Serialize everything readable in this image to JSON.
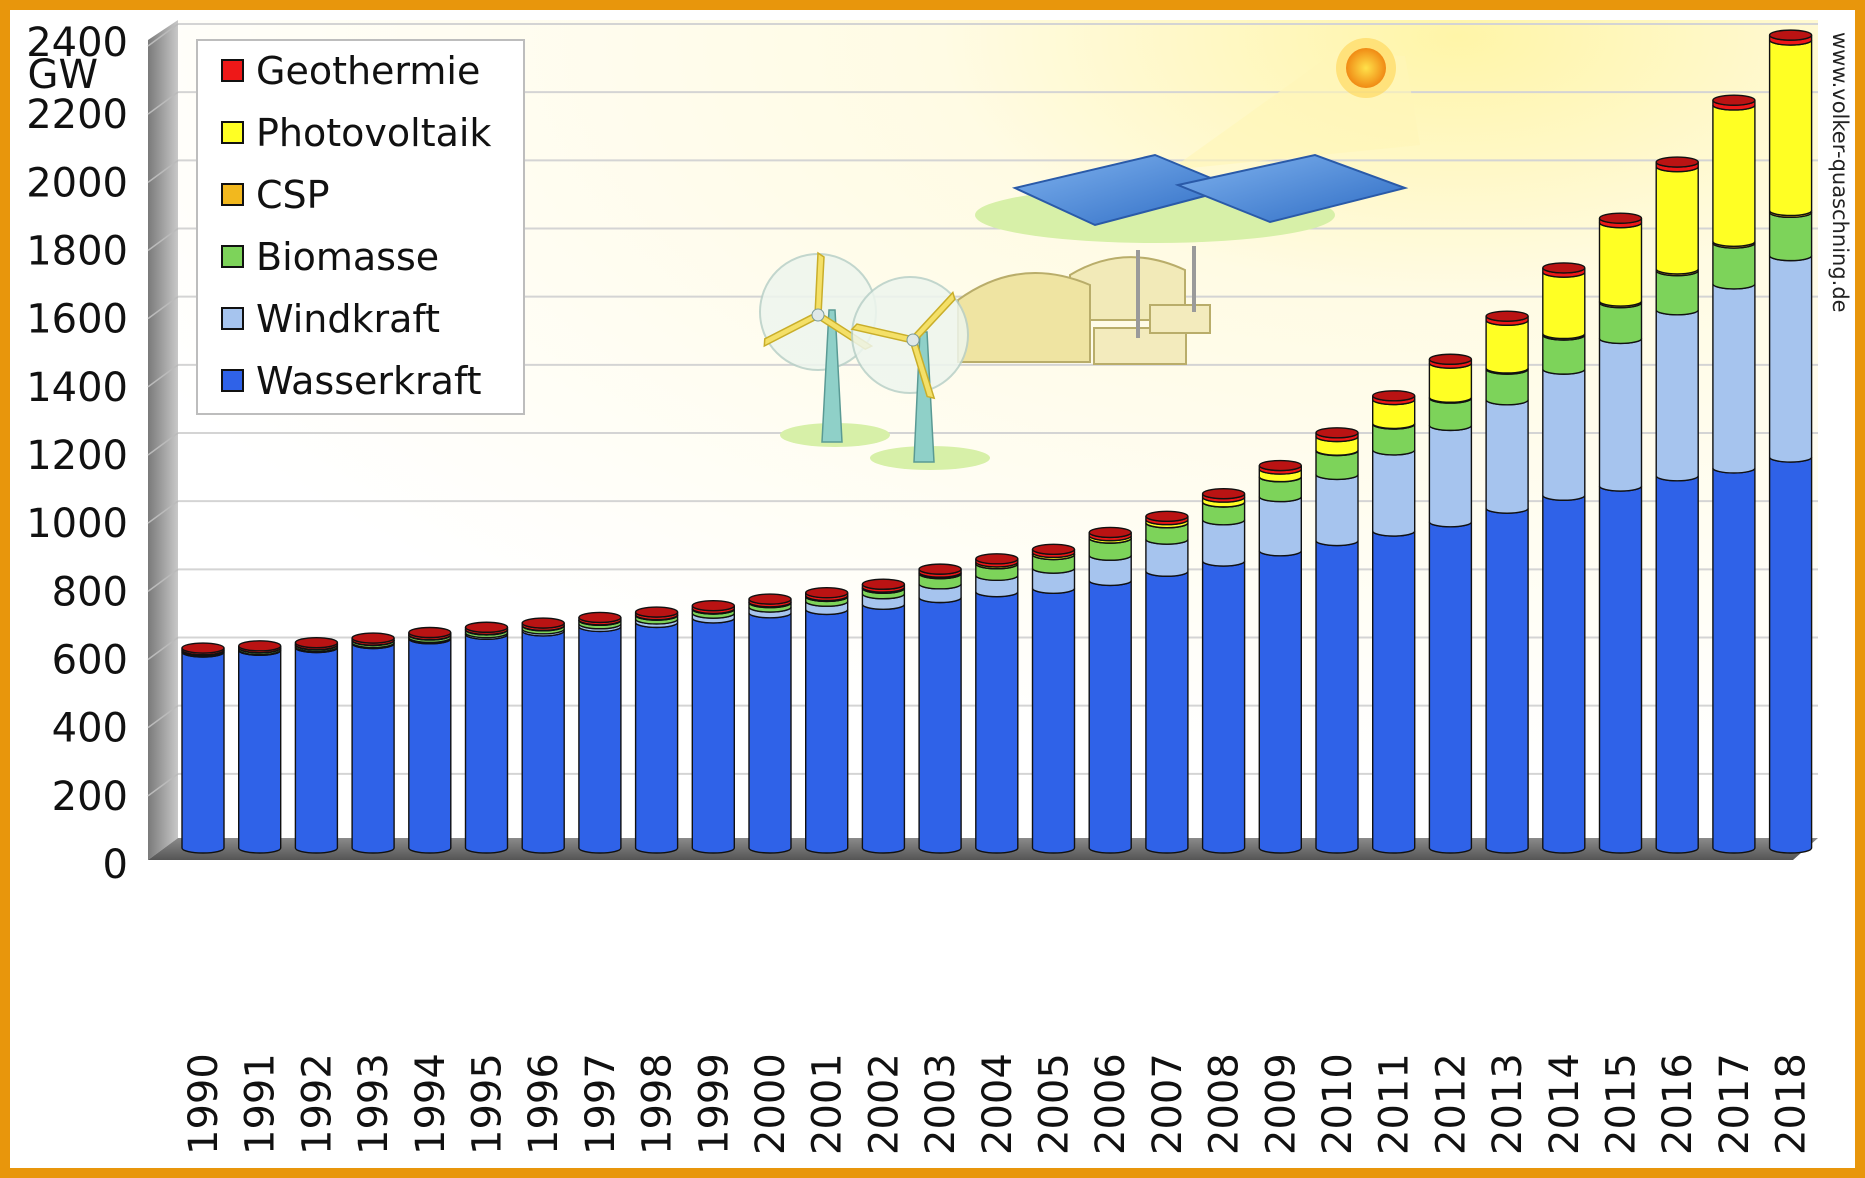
{
  "chart_data": {
    "type": "bar",
    "stacked": true,
    "unit": "GW",
    "ylim": [
      0,
      2400
    ],
    "yticks": [
      0,
      200,
      400,
      600,
      800,
      1000,
      1200,
      1400,
      1600,
      1800,
      2000,
      2200,
      2400
    ],
    "grid": true,
    "legend_position": "top-left",
    "source": "www.volker-quaschning.de",
    "categories": [
      "1990",
      "1991",
      "1992",
      "1993",
      "1994",
      "1995",
      "1996",
      "1997",
      "1998",
      "1999",
      "2000",
      "2001",
      "2002",
      "2003",
      "2004",
      "2005",
      "2006",
      "2007",
      "2008",
      "2009",
      "2010",
      "2011",
      "2012",
      "2013",
      "2014",
      "2015",
      "2016",
      "2017",
      "2018"
    ],
    "series": [
      {
        "name": "Wasserkraft",
        "color": "#2f62e8",
        "values": [
          575,
          580,
          588,
          600,
          614,
          627,
          637,
          650,
          662,
          675,
          690,
          700,
          715,
          735,
          752,
          762,
          785,
          812,
          842,
          872,
          902,
          930,
          957,
          997,
          1035,
          1062,
          1092,
          1115,
          1147
        ]
      },
      {
        "name": "Windkraft",
        "color": "#a6c4ee",
        "values": [
          2,
          2,
          3,
          3,
          4,
          5,
          6,
          8,
          10,
          14,
          17,
          24,
          31,
          40,
          48,
          59,
          74,
          94,
          121,
          159,
          194,
          238,
          283,
          318,
          370,
          433,
          487,
          540,
          591
        ]
      },
      {
        "name": "Biomasse",
        "color": "#7dd35a",
        "values": [
          4,
          5,
          5,
          6,
          7,
          8,
          9,
          10,
          11,
          12,
          13,
          14,
          16,
          30,
          34,
          40,
          50,
          48,
          52,
          58,
          70,
          76,
          80,
          90,
          100,
          105,
          115,
          120,
          127
        ]
      },
      {
        "name": "CSP",
        "color": "#f2b81e",
        "values": [
          0.4,
          0.4,
          0.4,
          0.4,
          0.4,
          0.4,
          0.4,
          0.4,
          0.4,
          0.4,
          0.4,
          0.4,
          0.4,
          0.4,
          0.4,
          0.4,
          0.5,
          0.5,
          0.5,
          0.7,
          1.3,
          1.8,
          2.5,
          3.4,
          4.5,
          4.8,
          5,
          5,
          5.5
        ]
      },
      {
        "name": "Photovoltaik",
        "color": "#ffff24",
        "values": [
          0.3,
          0.4,
          0.5,
          0.6,
          0.7,
          0.8,
          0.9,
          1.1,
          1.3,
          1.6,
          1.9,
          2.4,
          3,
          4,
          5,
          6,
          7,
          9,
          14,
          22,
          40,
          70,
          100,
          140,
          180,
          230,
          300,
          400,
          500
        ]
      },
      {
        "name": "Geothermie",
        "color": "#ee1818",
        "values": [
          5,
          5.3,
          5.6,
          6,
          6.2,
          6.5,
          6.7,
          7,
          7.5,
          8,
          8,
          8.2,
          8.5,
          8.8,
          9,
          9,
          9.4,
          9.7,
          10,
          10.5,
          11,
          11,
          11.5,
          12,
          12.5,
          13,
          13.5,
          14,
          14.5
        ]
      }
    ]
  }
}
